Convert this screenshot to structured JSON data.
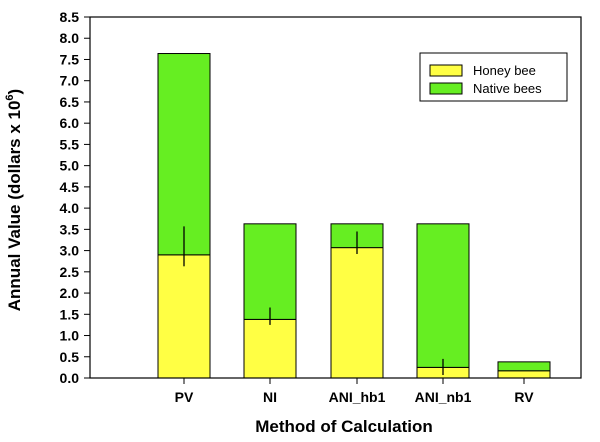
{
  "chart_data": {
    "type": "bar",
    "stacked": true,
    "categories": [
      "PV",
      "NI",
      "ANI_hb1",
      "ANI_nb1",
      "RV"
    ],
    "series": [
      {
        "name": "Honey bee",
        "color": "#ffff44",
        "values": [
          2.9,
          1.38,
          3.07,
          0.25,
          0.17
        ],
        "error_low": [
          2.63,
          1.25,
          2.92,
          0.07,
          null
        ],
        "error_high": [
          3.57,
          1.66,
          3.45,
          0.45,
          null
        ]
      },
      {
        "name": "Native bees",
        "color": "#66ee22",
        "values": [
          4.74,
          2.25,
          0.56,
          3.38,
          0.21
        ]
      }
    ],
    "xlabel": "Method of Calculation",
    "ylabel_main": "Annual Value (dollars x 10",
    "ylabel_exp": "6",
    "ylabel_close": ")",
    "ylim": [
      0,
      8.5
    ],
    "yticks": [
      0.0,
      0.5,
      1.0,
      1.5,
      2.0,
      2.5,
      3.0,
      3.5,
      4.0,
      4.5,
      5.0,
      5.5,
      6.0,
      6.5,
      7.0,
      7.5,
      8.0,
      8.5
    ],
    "ytick_labels": [
      "0.0",
      "0.5",
      "1.0",
      "1.5",
      "2.0",
      "2.5",
      "3.0",
      "3.5",
      "4.0",
      "4.5",
      "5.0",
      "5.5",
      "6.0",
      "6.5",
      "7.0",
      "7.5",
      "8.0",
      "8.5"
    ],
    "legend_position": "top-right",
    "grid": false
  }
}
